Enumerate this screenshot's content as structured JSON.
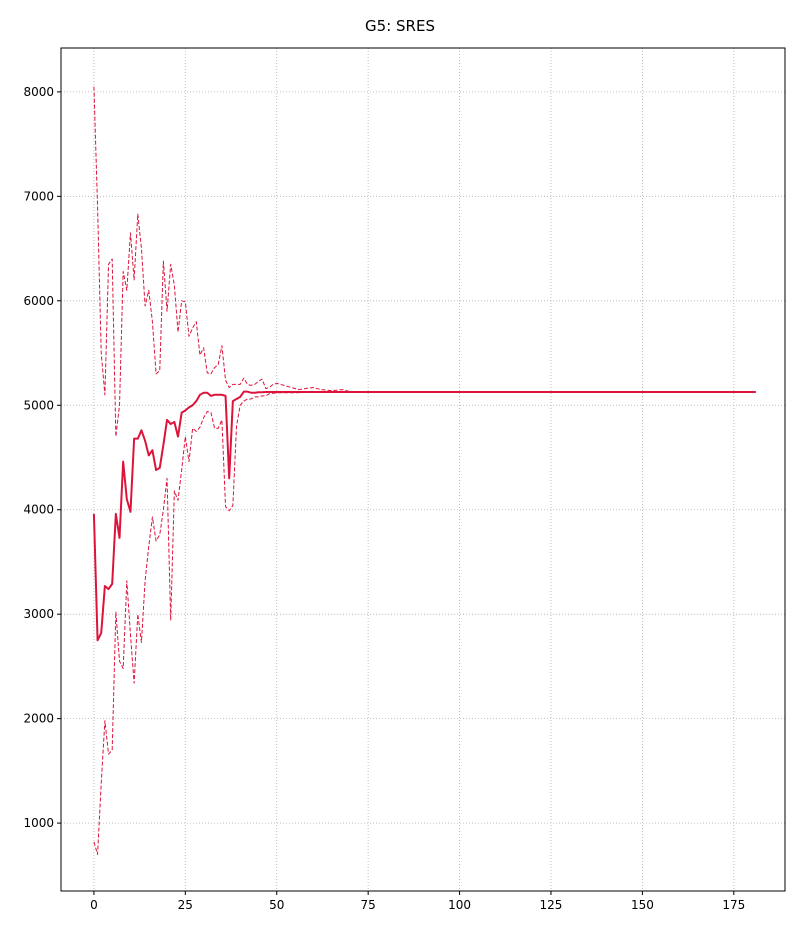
{
  "chart_data": {
    "type": "line",
    "title": "G5: SRES",
    "xlabel": "",
    "ylabel": "",
    "xlim": [
      -9,
      189
    ],
    "ylim": [
      350,
      8420
    ],
    "grid": true,
    "legend": "none",
    "xticks": [
      0,
      25,
      50,
      75,
      100,
      125,
      150,
      175
    ],
    "yticks": [
      1000,
      2000,
      3000,
      4000,
      5000,
      6000,
      7000,
      8000
    ],
    "color": "#dc143c",
    "series": [
      {
        "style": "solid",
        "points": [
          [
            0,
            3960
          ],
          [
            1,
            2750
          ],
          [
            2,
            2820
          ],
          [
            3,
            3270
          ],
          [
            4,
            3240
          ],
          [
            5,
            3290
          ],
          [
            6,
            3960
          ],
          [
            7,
            3730
          ],
          [
            8,
            4460
          ],
          [
            9,
            4100
          ],
          [
            10,
            3980
          ],
          [
            11,
            4680
          ],
          [
            12,
            4680
          ],
          [
            13,
            4760
          ],
          [
            14,
            4660
          ],
          [
            15,
            4520
          ],
          [
            16,
            4570
          ],
          [
            17,
            4380
          ],
          [
            18,
            4400
          ],
          [
            19,
            4620
          ],
          [
            20,
            4860
          ],
          [
            21,
            4820
          ],
          [
            22,
            4840
          ],
          [
            23,
            4700
          ],
          [
            24,
            4930
          ],
          [
            25,
            4950
          ],
          [
            26,
            4980
          ],
          [
            27,
            5000
          ],
          [
            28,
            5040
          ],
          [
            29,
            5100
          ],
          [
            30,
            5120
          ],
          [
            31,
            5120
          ],
          [
            32,
            5090
          ],
          [
            33,
            5100
          ],
          [
            34,
            5100
          ],
          [
            35,
            5100
          ],
          [
            36,
            5090
          ],
          [
            37,
            4300
          ],
          [
            38,
            5040
          ],
          [
            39,
            5060
          ],
          [
            40,
            5080
          ],
          [
            41,
            5130
          ],
          [
            42,
            5130
          ],
          [
            43,
            5120
          ],
          [
            44,
            5120
          ],
          [
            45,
            5125
          ],
          [
            46,
            5125
          ],
          [
            47,
            5127
          ],
          [
            48,
            5127
          ],
          [
            50,
            5127
          ],
          [
            55,
            5127
          ],
          [
            60,
            5127
          ],
          [
            70,
            5127
          ],
          [
            100,
            5127
          ],
          [
            150,
            5127
          ],
          [
            181,
            5127
          ]
        ]
      },
      {
        "style": "dashed",
        "points": [
          [
            0,
            8050
          ],
          [
            1,
            6900
          ],
          [
            2,
            5500
          ],
          [
            3,
            5100
          ],
          [
            4,
            6350
          ],
          [
            5,
            6400
          ],
          [
            6,
            4700
          ],
          [
            7,
            5000
          ],
          [
            8,
            6280
          ],
          [
            9,
            6100
          ],
          [
            10,
            6650
          ],
          [
            11,
            6200
          ],
          [
            12,
            6830
          ],
          [
            13,
            6500
          ],
          [
            14,
            5950
          ],
          [
            15,
            6100
          ],
          [
            16,
            5800
          ],
          [
            17,
            5300
          ],
          [
            18,
            5330
          ],
          [
            19,
            6380
          ],
          [
            20,
            5900
          ],
          [
            21,
            6350
          ],
          [
            22,
            6150
          ],
          [
            23,
            5700
          ],
          [
            24,
            6000
          ],
          [
            25,
            5990
          ],
          [
            26,
            5660
          ],
          [
            27,
            5740
          ],
          [
            28,
            5800
          ],
          [
            29,
            5480
          ],
          [
            30,
            5550
          ],
          [
            31,
            5310
          ],
          [
            32,
            5300
          ],
          [
            33,
            5360
          ],
          [
            34,
            5390
          ],
          [
            35,
            5570
          ],
          [
            36,
            5240
          ],
          [
            37,
            5170
          ],
          [
            38,
            5200
          ],
          [
            39,
            5200
          ],
          [
            40,
            5200
          ],
          [
            41,
            5260
          ],
          [
            42,
            5200
          ],
          [
            43,
            5190
          ],
          [
            44,
            5200
          ],
          [
            45,
            5230
          ],
          [
            46,
            5250
          ],
          [
            47,
            5160
          ],
          [
            48,
            5170
          ],
          [
            49,
            5200
          ],
          [
            50,
            5210
          ],
          [
            52,
            5190
          ],
          [
            54,
            5170
          ],
          [
            56,
            5150
          ],
          [
            58,
            5160
          ],
          [
            60,
            5170
          ],
          [
            62,
            5150
          ],
          [
            65,
            5140
          ],
          [
            68,
            5150
          ],
          [
            70,
            5130
          ],
          [
            80,
            5127
          ],
          [
            181,
            5127
          ]
        ]
      },
      {
        "style": "dashed",
        "points": [
          [
            0,
            820
          ],
          [
            1,
            700
          ],
          [
            2,
            1380
          ],
          [
            3,
            1980
          ],
          [
            4,
            1660
          ],
          [
            5,
            1700
          ],
          [
            6,
            3020
          ],
          [
            7,
            2550
          ],
          [
            8,
            2480
          ],
          [
            9,
            3320
          ],
          [
            10,
            2800
          ],
          [
            11,
            2340
          ],
          [
            12,
            3000
          ],
          [
            13,
            2730
          ],
          [
            14,
            3320
          ],
          [
            15,
            3650
          ],
          [
            16,
            3930
          ],
          [
            17,
            3700
          ],
          [
            18,
            3760
          ],
          [
            19,
            4000
          ],
          [
            20,
            4300
          ],
          [
            21,
            2940
          ],
          [
            22,
            4180
          ],
          [
            23,
            4090
          ],
          [
            24,
            4380
          ],
          [
            25,
            4700
          ],
          [
            26,
            4460
          ],
          [
            27,
            4780
          ],
          [
            28,
            4750
          ],
          [
            29,
            4790
          ],
          [
            30,
            4880
          ],
          [
            31,
            4940
          ],
          [
            32,
            4930
          ],
          [
            33,
            4780
          ],
          [
            34,
            4780
          ],
          [
            35,
            4860
          ],
          [
            36,
            4030
          ],
          [
            37,
            3990
          ],
          [
            38,
            4040
          ],
          [
            39,
            4800
          ],
          [
            40,
            5000
          ],
          [
            41,
            5040
          ],
          [
            42,
            5060
          ],
          [
            43,
            5060
          ],
          [
            44,
            5080
          ],
          [
            45,
            5080
          ],
          [
            46,
            5090
          ],
          [
            47,
            5090
          ],
          [
            48,
            5110
          ],
          [
            50,
            5120
          ],
          [
            55,
            5120
          ],
          [
            60,
            5125
          ],
          [
            70,
            5127
          ],
          [
            181,
            5127
          ]
        ]
      }
    ]
  }
}
